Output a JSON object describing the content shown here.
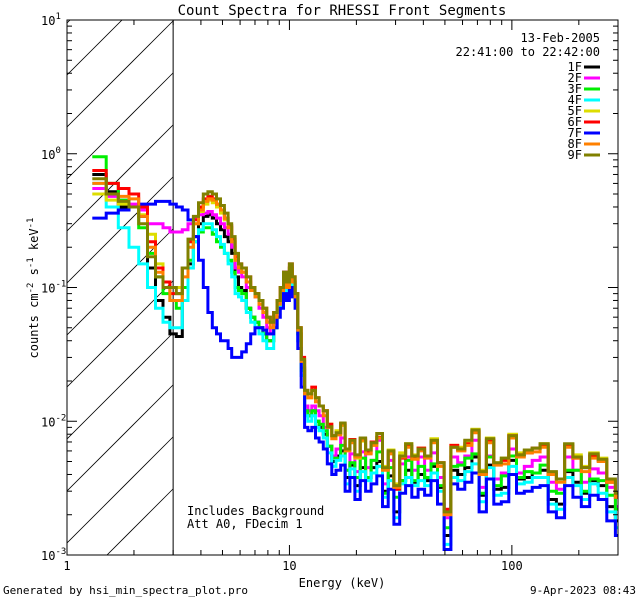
{
  "chart_data": {
    "type": "line",
    "title": "Count Spectra for RHESSI Front Segments",
    "xlabel": "Energy (keV)",
    "ylabel": "counts cm-2 s-1 keV-1",
    "xscale": "log",
    "yscale": "log",
    "xlim": [
      1,
      300
    ],
    "ylim": [
      0.001,
      10
    ],
    "x_ticks": [
      {
        "value": 1,
        "label": "1"
      },
      {
        "value": 10,
        "label": "10"
      },
      {
        "value": 100,
        "label": "100"
      }
    ],
    "y_ticks": [
      {
        "value": 0.001,
        "base": "10",
        "exp": "-3"
      },
      {
        "value": 0.01,
        "base": "10",
        "exp": "-2"
      },
      {
        "value": 0.1,
        "base": "10",
        "exp": "-1"
      },
      {
        "value": 1,
        "base": "10",
        "exp": "0"
      },
      {
        "value": 10,
        "base": "10",
        "exp": "1"
      }
    ],
    "shaded_region": {
      "x_range": [
        1,
        3
      ],
      "style": "diagonal hatch"
    },
    "date": "13-Feb-2005",
    "time_range": "22:41:00 to 22:42:00",
    "notes": [
      "Includes Background",
      "Att A0, FDecim 1"
    ],
    "footer_left": "Generated by hsi_min_spectra_plot.pro",
    "footer_right": "9-Apr-2023 08:43",
    "x_edges": [
      1.3,
      1.5,
      1.7,
      1.9,
      2.1,
      2.3,
      2.5,
      2.7,
      2.9,
      3.1,
      3.3,
      3.5,
      3.7,
      3.9,
      4.1,
      4.3,
      4.5,
      4.7,
      4.9,
      5.1,
      5.3,
      5.5,
      5.7,
      5.9,
      6.1,
      6.4,
      6.7,
      7.0,
      7.3,
      7.6,
      7.9,
      8.2,
      8.5,
      8.8,
      9.1,
      9.4,
      9.7,
      10.0,
      10.3,
      10.6,
      10.9,
      11.3,
      11.7,
      12.1,
      12.6,
      13.1,
      13.6,
      14.2,
      14.8,
      15.5,
      16.2,
      17.0,
      17.8,
      18.7,
      19.7,
      20.8,
      22.0,
      23.3,
      24.7,
      26.2,
      27.8,
      29.5,
      31.3,
      33.3,
      35.5,
      37.9,
      40.5,
      43.3,
      46.3,
      49.6,
      53.2,
      57.1,
      61.4,
      66.1,
      71.2,
      76.8,
      82.9,
      89.6,
      96.9,
      104.9,
      113.7,
      123.4,
      134.0,
      145.7,
      158.5,
      172.6,
      188.1,
      205.1,
      223.8,
      244.4,
      267.1,
      292.0,
      300.0
    ],
    "series": [
      {
        "name": "1F",
        "color": "#000000",
        "values": [
          0.7,
          0.52,
          0.4,
          0.4,
          0.34,
          0.14,
          0.08,
          0.06,
          0.045,
          0.043,
          0.08,
          0.15,
          0.24,
          0.3,
          0.34,
          0.35,
          0.33,
          0.3,
          0.27,
          0.24,
          0.22,
          0.18,
          0.12,
          0.1,
          0.095,
          0.07,
          0.06,
          0.055,
          0.05,
          0.045,
          0.04,
          0.04,
          0.06,
          0.08,
          0.1,
          0.13,
          0.11,
          0.14,
          0.11,
          0.09,
          0.045,
          0.025,
          0.012,
          0.011,
          0.012,
          0.01,
          0.009,
          0.008,
          0.0065,
          0.005,
          0.0055,
          0.006,
          0.0038,
          0.0047,
          0.0033,
          0.0045,
          0.0038,
          0.0045,
          0.005,
          0.003,
          0.0039,
          0.0021,
          0.0036,
          0.0043,
          0.0035,
          0.004,
          0.0036,
          0.0046,
          0.0032,
          0.0014,
          0.0043,
          0.004,
          0.0045,
          0.0054,
          0.0028,
          0.0047,
          0.0031,
          0.0032,
          0.0051,
          0.0037,
          0.0038,
          0.0041,
          0.0043,
          0.0026,
          0.0024,
          0.0042,
          0.0035,
          0.0029,
          0.0036,
          0.0033,
          0.0023,
          0.0018
        ]
      },
      {
        "name": "2F",
        "color": "#ff00ff",
        "values": [
          0.55,
          0.48,
          0.45,
          0.42,
          0.38,
          0.3,
          0.3,
          0.28,
          0.26,
          0.26,
          0.27,
          0.3,
          0.33,
          0.35,
          0.36,
          0.37,
          0.35,
          0.33,
          0.3,
          0.28,
          0.25,
          0.2,
          0.14,
          0.13,
          0.12,
          0.1,
          0.095,
          0.085,
          0.07,
          0.06,
          0.05,
          0.045,
          0.06,
          0.07,
          0.09,
          0.11,
          0.095,
          0.12,
          0.1,
          0.085,
          0.04,
          0.022,
          0.013,
          0.012,
          0.013,
          0.012,
          0.011,
          0.009,
          0.0065,
          0.0055,
          0.0062,
          0.0075,
          0.0043,
          0.0057,
          0.0042,
          0.0059,
          0.0045,
          0.0051,
          0.0072,
          0.0034,
          0.0051,
          0.0031,
          0.0048,
          0.0054,
          0.0043,
          0.0054,
          0.0043,
          0.0058,
          0.0038,
          0.0019,
          0.0054,
          0.0049,
          0.0055,
          0.0072,
          0.0032,
          0.0055,
          0.0037,
          0.0041,
          0.0062,
          0.0041,
          0.0046,
          0.0051,
          0.0054,
          0.0035,
          0.0031,
          0.0054,
          0.0043,
          0.0035,
          0.0044,
          0.0041,
          0.0032,
          0.0023
        ]
      },
      {
        "name": "3F",
        "color": "#00ee00",
        "values": [
          0.95,
          0.6,
          0.45,
          0.4,
          0.28,
          0.18,
          0.12,
          0.09,
          0.08,
          0.07,
          0.1,
          0.16,
          0.22,
          0.26,
          0.28,
          0.28,
          0.25,
          0.22,
          0.2,
          0.18,
          0.16,
          0.13,
          0.1,
          0.095,
          0.09,
          0.07,
          0.06,
          0.055,
          0.05,
          0.045,
          0.04,
          0.04,
          0.05,
          0.07,
          0.09,
          0.12,
          0.1,
          0.13,
          0.105,
          0.085,
          0.045,
          0.024,
          0.012,
          0.011,
          0.012,
          0.01,
          0.0095,
          0.0085,
          0.0065,
          0.0053,
          0.0053,
          0.0066,
          0.0043,
          0.0049,
          0.0038,
          0.0053,
          0.0038,
          0.0051,
          0.0059,
          0.0029,
          0.0045,
          0.0027,
          0.0036,
          0.0051,
          0.0036,
          0.0046,
          0.0038,
          0.0048,
          0.0033,
          0.0016,
          0.0046,
          0.0047,
          0.0053,
          0.0057,
          0.0029,
          0.0054,
          0.0033,
          0.0039,
          0.0055,
          0.0038,
          0.0042,
          0.0041,
          0.0047,
          0.003,
          0.0029,
          0.0043,
          0.0043,
          0.003,
          0.0037,
          0.0036,
          0.0028,
          0.0022
        ]
      },
      {
        "name": "4F",
        "color": "#00ffff",
        "values": [
          0.6,
          0.4,
          0.28,
          0.2,
          0.15,
          0.1,
          0.07,
          0.055,
          0.05,
          0.05,
          0.08,
          0.14,
          0.22,
          0.27,
          0.3,
          0.3,
          0.27,
          0.24,
          0.21,
          0.18,
          0.15,
          0.12,
          0.09,
          0.085,
          0.08,
          0.065,
          0.055,
          0.05,
          0.045,
          0.04,
          0.035,
          0.035,
          0.05,
          0.07,
          0.09,
          0.11,
          0.09,
          0.12,
          0.1,
          0.08,
          0.04,
          0.022,
          0.011,
          0.01,
          0.011,
          0.009,
          0.0085,
          0.0075,
          0.0058,
          0.0046,
          0.0051,
          0.0055,
          0.0034,
          0.0044,
          0.003,
          0.0042,
          0.0036,
          0.0041,
          0.0046,
          0.0027,
          0.0036,
          0.0019,
          0.0034,
          0.0038,
          0.0033,
          0.0036,
          0.0033,
          0.0041,
          0.003,
          0.0012,
          0.0038,
          0.0036,
          0.0042,
          0.0048,
          0.0025,
          0.0045,
          0.0028,
          0.0029,
          0.0046,
          0.0034,
          0.0035,
          0.0038,
          0.0038,
          0.0024,
          0.0022,
          0.0038,
          0.0033,
          0.0026,
          0.0034,
          0.0029,
          0.0021,
          0.0016
        ]
      },
      {
        "name": "5F",
        "color": "#dddd00",
        "values": [
          0.5,
          0.45,
          0.42,
          0.4,
          0.35,
          0.25,
          0.15,
          0.11,
          0.1,
          0.1,
          0.14,
          0.22,
          0.3,
          0.37,
          0.42,
          0.45,
          0.43,
          0.4,
          0.36,
          0.32,
          0.28,
          0.22,
          0.16,
          0.14,
          0.13,
          0.11,
          0.1,
          0.09,
          0.08,
          0.07,
          0.06,
          0.055,
          0.065,
          0.08,
          0.1,
          0.12,
          0.1,
          0.14,
          0.12,
          0.09,
          0.05,
          0.028,
          0.016,
          0.015,
          0.017,
          0.014,
          0.013,
          0.012,
          0.0095,
          0.0078,
          0.0085,
          0.0093,
          0.0062,
          0.0072,
          0.0053,
          0.0071,
          0.0061,
          0.0069,
          0.0081,
          0.0046,
          0.0061,
          0.0034,
          0.0058,
          0.0068,
          0.0056,
          0.0063,
          0.0055,
          0.0074,
          0.0049,
          0.0021,
          0.0066,
          0.0064,
          0.0071,
          0.0087,
          0.0043,
          0.0075,
          0.0049,
          0.0053,
          0.008,
          0.0058,
          0.006,
          0.0063,
          0.0068,
          0.0041,
          0.0037,
          0.0067,
          0.0056,
          0.0046,
          0.0058,
          0.0053,
          0.0036,
          0.0028
        ]
      },
      {
        "name": "6F",
        "color": "#ff0000",
        "values": [
          0.75,
          0.6,
          0.55,
          0.5,
          0.4,
          0.22,
          0.14,
          0.11,
          0.09,
          0.09,
          0.14,
          0.22,
          0.32,
          0.4,
          0.46,
          0.48,
          0.46,
          0.42,
          0.38,
          0.33,
          0.29,
          0.23,
          0.17,
          0.15,
          0.14,
          0.12,
          0.1,
          0.09,
          0.08,
          0.07,
          0.06,
          0.055,
          0.065,
          0.08,
          0.1,
          0.13,
          0.11,
          0.15,
          0.12,
          0.09,
          0.05,
          0.03,
          0.017,
          0.016,
          0.018,
          0.015,
          0.013,
          0.012,
          0.0095,
          0.0078,
          0.0081,
          0.0096,
          0.0061,
          0.0073,
          0.0055,
          0.0074,
          0.0058,
          0.007,
          0.0076,
          0.0044,
          0.0059,
          0.0031,
          0.0053,
          0.0065,
          0.0053,
          0.0063,
          0.0054,
          0.0071,
          0.0049,
          0.0022,
          0.0066,
          0.0061,
          0.0068,
          0.0084,
          0.0041,
          0.0072,
          0.0048,
          0.0051,
          0.0078,
          0.0056,
          0.0058,
          0.0063,
          0.0066,
          0.004,
          0.0037,
          0.0065,
          0.0053,
          0.0045,
          0.0055,
          0.0051,
          0.0035,
          0.0027
        ]
      },
      {
        "name": "7F",
        "color": "#0000ff",
        "values": [
          0.33,
          0.36,
          0.38,
          0.4,
          0.42,
          0.42,
          0.44,
          0.44,
          0.42,
          0.4,
          0.38,
          0.32,
          0.24,
          0.16,
          0.1,
          0.065,
          0.05,
          0.045,
          0.04,
          0.04,
          0.035,
          0.03,
          0.03,
          0.03,
          0.033,
          0.038,
          0.045,
          0.05,
          0.05,
          0.048,
          0.045,
          0.045,
          0.05,
          0.06,
          0.07,
          0.09,
          0.08,
          0.1,
          0.085,
          0.07,
          0.035,
          0.018,
          0.009,
          0.0085,
          0.009,
          0.0075,
          0.007,
          0.0062,
          0.0048,
          0.004,
          0.0043,
          0.0047,
          0.003,
          0.0038,
          0.0026,
          0.0036,
          0.003,
          0.0034,
          0.0039,
          0.0023,
          0.0031,
          0.0017,
          0.0029,
          0.0033,
          0.0027,
          0.0031,
          0.0028,
          0.0036,
          0.0024,
          0.0011,
          0.0034,
          0.0031,
          0.0035,
          0.0041,
          0.0021,
          0.0037,
          0.0024,
          0.0025,
          0.004,
          0.0029,
          0.003,
          0.0032,
          0.0033,
          0.0021,
          0.0019,
          0.0033,
          0.0027,
          0.0023,
          0.0028,
          0.0026,
          0.0018,
          0.0014
        ]
      },
      {
        "name": "8F",
        "color": "#ff8000",
        "values": [
          0.6,
          0.5,
          0.48,
          0.46,
          0.34,
          0.2,
          0.13,
          0.1,
          0.08,
          0.08,
          0.12,
          0.2,
          0.3,
          0.38,
          0.44,
          0.46,
          0.45,
          0.42,
          0.38,
          0.33,
          0.28,
          0.22,
          0.16,
          0.14,
          0.13,
          0.11,
          0.095,
          0.085,
          0.075,
          0.065,
          0.055,
          0.05,
          0.06,
          0.075,
          0.095,
          0.12,
          0.1,
          0.14,
          0.11,
          0.085,
          0.048,
          0.028,
          0.016,
          0.015,
          0.017,
          0.014,
          0.013,
          0.011,
          0.009,
          0.0074,
          0.0079,
          0.0094,
          0.006,
          0.0069,
          0.0054,
          0.0072,
          0.0057,
          0.0066,
          0.0075,
          0.0043,
          0.0057,
          0.0032,
          0.0054,
          0.0064,
          0.0052,
          0.006,
          0.0053,
          0.0069,
          0.0046,
          0.002,
          0.0064,
          0.006,
          0.0066,
          0.0082,
          0.004,
          0.0069,
          0.0047,
          0.0048,
          0.0075,
          0.0054,
          0.0058,
          0.0059,
          0.0064,
          0.004,
          0.0035,
          0.0064,
          0.0053,
          0.0042,
          0.0053,
          0.005,
          0.0035,
          0.0027
        ]
      },
      {
        "name": "9F",
        "color": "#808000",
        "values": [
          0.65,
          0.5,
          0.44,
          0.4,
          0.3,
          0.17,
          0.12,
          0.1,
          0.1,
          0.09,
          0.14,
          0.23,
          0.34,
          0.43,
          0.5,
          0.52,
          0.5,
          0.46,
          0.41,
          0.36,
          0.3,
          0.24,
          0.18,
          0.15,
          0.14,
          0.12,
          0.1,
          0.09,
          0.08,
          0.07,
          0.06,
          0.055,
          0.065,
          0.08,
          0.1,
          0.13,
          0.11,
          0.15,
          0.12,
          0.09,
          0.05,
          0.029,
          0.017,
          0.016,
          0.017,
          0.015,
          0.013,
          0.012,
          0.0091,
          0.0078,
          0.0082,
          0.0097,
          0.0062,
          0.0072,
          0.0056,
          0.0075,
          0.0061,
          0.0069,
          0.0081,
          0.0045,
          0.006,
          0.0033,
          0.0055,
          0.0068,
          0.0055,
          0.0062,
          0.0055,
          0.0072,
          0.0049,
          0.0021,
          0.0064,
          0.0062,
          0.0072,
          0.0086,
          0.0042,
          0.0074,
          0.0049,
          0.0053,
          0.0078,
          0.0056,
          0.0061,
          0.0063,
          0.0068,
          0.0042,
          0.0037,
          0.0068,
          0.0054,
          0.0045,
          0.0057,
          0.0052,
          0.0037,
          0.0029
        ]
      }
    ]
  }
}
